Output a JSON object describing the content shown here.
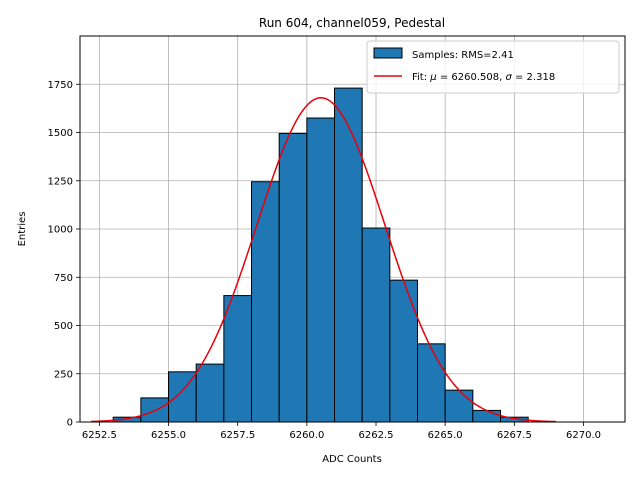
{
  "chart_data": {
    "type": "bar",
    "title": "Run 604, channel059, Pedestal",
    "xlabel": "ADC Counts",
    "ylabel": "Entries",
    "xlim": [
      6251.8,
      6271.5
    ],
    "ylim": [
      0,
      2000
    ],
    "xticks": [
      6252.5,
      6255.0,
      6257.5,
      6260.0,
      6262.5,
      6265.0,
      6267.5,
      6270.0
    ],
    "xtick_labels": [
      "6252.5",
      "6255.0",
      "6257.5",
      "6260.0",
      "6262.5",
      "6265.0",
      "6267.5",
      "6270.0"
    ],
    "yticks": [
      0,
      250,
      500,
      750,
      1000,
      1250,
      1500,
      1750
    ],
    "ytick_labels": [
      "0",
      "250",
      "500",
      "750",
      "1000",
      "1250",
      "1500",
      "1750"
    ],
    "grid": true,
    "legend_position": "top-right",
    "histogram": {
      "name": "Samples: RMS=2.41",
      "color": "#1f77b4",
      "edge_color": "#000000",
      "bins": [
        {
          "start": 6253,
          "end": 6254,
          "count": 25
        },
        {
          "start": 6254,
          "end": 6255,
          "count": 125
        },
        {
          "start": 6255,
          "end": 6256,
          "count": 260
        },
        {
          "start": 6256,
          "end": 6257,
          "count": 300
        },
        {
          "start": 6257,
          "end": 6258,
          "count": 655
        },
        {
          "start": 6258,
          "end": 6259,
          "count": 1245
        },
        {
          "start": 6259,
          "end": 6260,
          "count": 1495
        },
        {
          "start": 6260,
          "end": 6261,
          "count": 1575
        },
        {
          "start": 6261,
          "end": 6262,
          "count": 1730
        },
        {
          "start": 6262,
          "end": 6263,
          "count": 1005
        },
        {
          "start": 6263,
          "end": 6264,
          "count": 735
        },
        {
          "start": 6264,
          "end": 6265,
          "count": 405
        },
        {
          "start": 6265,
          "end": 6266,
          "count": 165
        },
        {
          "start": 6266,
          "end": 6267,
          "count": 60
        },
        {
          "start": 6267,
          "end": 6268,
          "count": 25
        }
      ]
    },
    "fit": {
      "name": "Fit: μ = 6260.508, σ = 2.318",
      "label_prefix": "Fit: ",
      "mu_symbol": "μ",
      "mu_text": " = 6260.508, ",
      "sigma_symbol": "σ",
      "sigma_text": " = 2.318",
      "color": "#e8000b",
      "mu": 6260.508,
      "sigma": 2.318,
      "amplitude": 1680,
      "x_range": [
        6252.2,
        6269.0
      ]
    }
  }
}
